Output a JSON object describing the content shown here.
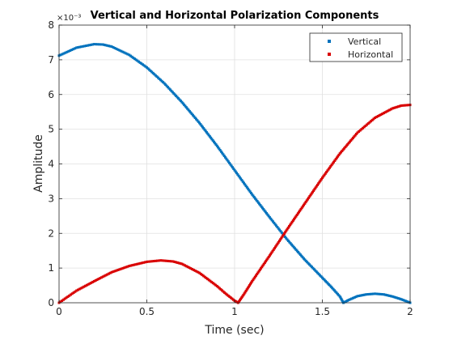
{
  "chart_data": {
    "type": "scatter",
    "title": "Vertical and Horizontal Polarization Components",
    "xlabel": "Time (sec)",
    "ylabel": "Amplitude",
    "y_exponent_label": "×10⁻³",
    "xlim": [
      0,
      2
    ],
    "ylim": [
      0,
      8
    ],
    "x_ticks": [
      0,
      0.5,
      1,
      1.5,
      2
    ],
    "x_tick_labels": [
      "0",
      "0.5",
      "1",
      "1.5",
      "2"
    ],
    "y_ticks": [
      0,
      1,
      2,
      3,
      4,
      5,
      6,
      7,
      8
    ],
    "y_tick_labels": [
      "0",
      "1",
      "2",
      "3",
      "4",
      "5",
      "6",
      "7",
      "8"
    ],
    "grid": true,
    "legend_position": "top-right",
    "series": [
      {
        "name": "Vertical",
        "color": "#0072BD",
        "x": [
          0,
          0.1,
          0.2,
          0.25,
          0.3,
          0.4,
          0.5,
          0.6,
          0.7,
          0.8,
          0.9,
          1.0,
          1.1,
          1.2,
          1.3,
          1.4,
          1.5,
          1.55,
          1.6,
          1.62,
          1.65,
          1.7,
          1.75,
          1.8,
          1.85,
          1.9,
          1.95,
          2.0
        ],
        "values": [
          7.12,
          7.35,
          7.45,
          7.44,
          7.38,
          7.14,
          6.78,
          6.32,
          5.78,
          5.18,
          4.52,
          3.82,
          3.12,
          2.46,
          1.82,
          1.24,
          0.72,
          0.46,
          0.18,
          0.0,
          0.08,
          0.19,
          0.24,
          0.26,
          0.24,
          0.18,
          0.1,
          0.0
        ]
      },
      {
        "name": "Horizontal",
        "color": "#D90000",
        "x": [
          0,
          0.1,
          0.2,
          0.3,
          0.4,
          0.5,
          0.58,
          0.65,
          0.7,
          0.8,
          0.9,
          0.95,
          1.0,
          1.02,
          1.05,
          1.1,
          1.2,
          1.3,
          1.4,
          1.5,
          1.6,
          1.7,
          1.8,
          1.9,
          1.95,
          2.0
        ],
        "values": [
          0.0,
          0.35,
          0.62,
          0.88,
          1.06,
          1.18,
          1.22,
          1.19,
          1.12,
          0.86,
          0.48,
          0.26,
          0.06,
          0.0,
          0.22,
          0.62,
          1.36,
          2.12,
          2.86,
          3.6,
          4.3,
          4.9,
          5.33,
          5.6,
          5.68,
          5.7
        ]
      }
    ]
  }
}
